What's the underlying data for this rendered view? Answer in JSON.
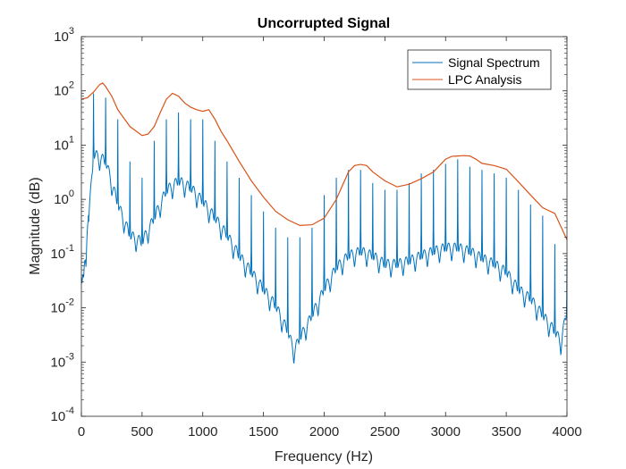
{
  "chart_data": {
    "type": "line",
    "title": "Uncorrupted Signal",
    "xlabel": "Frequency (Hz)",
    "ylabel": "Magnitude (dB)",
    "xlim": [
      0,
      4000
    ],
    "ylim": [
      0.0001,
      1000
    ],
    "y_scale": "log",
    "x_ticks": [
      0,
      500,
      1000,
      1500,
      2000,
      2500,
      3000,
      3500,
      4000
    ],
    "x_tick_labels": [
      "0",
      "500",
      "1000",
      "1500",
      "2000",
      "2500",
      "3000",
      "3500",
      "4000"
    ],
    "y_ticks": [
      {
        "value": 0.0001,
        "base": "10",
        "exp": "-4"
      },
      {
        "value": 0.001,
        "base": "10",
        "exp": "-3"
      },
      {
        "value": 0.01,
        "base": "10",
        "exp": "-2"
      },
      {
        "value": 0.1,
        "base": "10",
        "exp": "-1"
      },
      {
        "value": 1,
        "base": "10",
        "exp": "0"
      },
      {
        "value": 10,
        "base": "10",
        "exp": "1"
      },
      {
        "value": 100,
        "base": "10",
        "exp": "2"
      },
      {
        "value": 1000,
        "base": "10",
        "exp": "3"
      }
    ],
    "grid": false,
    "legend_position": "top-right",
    "series": [
      {
        "name": "Signal Spectrum",
        "color": "#0072BD",
        "style": "harmonic line spectrum",
        "harmonic_spacing_hz": 100,
        "x": [
          0,
          5,
          20,
          40,
          100,
          200,
          300,
          400,
          500,
          600,
          700,
          800,
          900,
          1000,
          1100,
          1200,
          1300,
          1400,
          1500,
          1600,
          1700,
          1750,
          1800,
          1900,
          2000,
          2100,
          2200,
          2300,
          2400,
          2500,
          2600,
          2700,
          2800,
          2900,
          3000,
          3100,
          3200,
          3300,
          3400,
          3500,
          3600,
          3700,
          3800,
          3900,
          3950,
          4000
        ],
        "peaks": [
          0.06,
          0.03,
          0.06,
          0.1,
          90,
          75,
          30,
          5,
          2.5,
          12,
          30,
          40,
          30,
          30,
          12,
          5,
          2.5,
          1.2,
          0.6,
          0.3,
          0.2,
          0.2,
          0.2,
          0.3,
          1.2,
          2.5,
          3.5,
          3.5,
          2,
          1.5,
          1.5,
          2,
          3,
          3.5,
          4.5,
          5.5,
          4,
          3.5,
          3,
          2.5,
          1.5,
          0.8,
          0.5,
          0.15,
          0.1,
          0.08
        ],
        "valleys": [
          0.025,
          0.025,
          0.04,
          0.06,
          3.8,
          2.8,
          0.45,
          0.12,
          0.09,
          0.25,
          0.8,
          1.2,
          0.9,
          0.5,
          0.25,
          0.12,
          0.05,
          0.025,
          0.012,
          0.006,
          0.002,
          0.0009,
          0.0015,
          0.004,
          0.012,
          0.03,
          0.05,
          0.06,
          0.05,
          0.035,
          0.035,
          0.04,
          0.05,
          0.06,
          0.07,
          0.07,
          0.06,
          0.045,
          0.035,
          0.025,
          0.012,
          0.008,
          0.004,
          0.002,
          0.0013,
          0.005
        ]
      },
      {
        "name": "LPC Analysis",
        "color": "#D95319",
        "x": [
          0,
          50,
          100,
          150,
          175,
          200,
          250,
          300,
          400,
          500,
          550,
          600,
          650,
          700,
          750,
          800,
          850,
          900,
          950,
          1000,
          1050,
          1100,
          1150,
          1200,
          1300,
          1400,
          1500,
          1600,
          1700,
          1800,
          1900,
          2000,
          2100,
          2200,
          2250,
          2300,
          2350,
          2400,
          2500,
          2600,
          2700,
          2800,
          2900,
          3000,
          3050,
          3100,
          3150,
          3200,
          3250,
          3300,
          3400,
          3500,
          3600,
          3700,
          3800,
          3900,
          4000
        ],
        "y": [
          70,
          75,
          95,
          130,
          140,
          120,
          80,
          45,
          22,
          15,
          16,
          22,
          40,
          70,
          90,
          80,
          60,
          50,
          45,
          42,
          45,
          30,
          18,
          12,
          5,
          2.2,
          1.1,
          0.6,
          0.42,
          0.33,
          0.34,
          0.45,
          1,
          3.2,
          4.2,
          4.4,
          4.2,
          3.2,
          2.2,
          1.7,
          1.9,
          2.4,
          3.2,
          5.5,
          6.2,
          6.3,
          6.4,
          6.3,
          5.5,
          4.6,
          4.2,
          3.6,
          2.1,
          1.2,
          0.7,
          0.55,
          0.18
        ]
      }
    ]
  }
}
